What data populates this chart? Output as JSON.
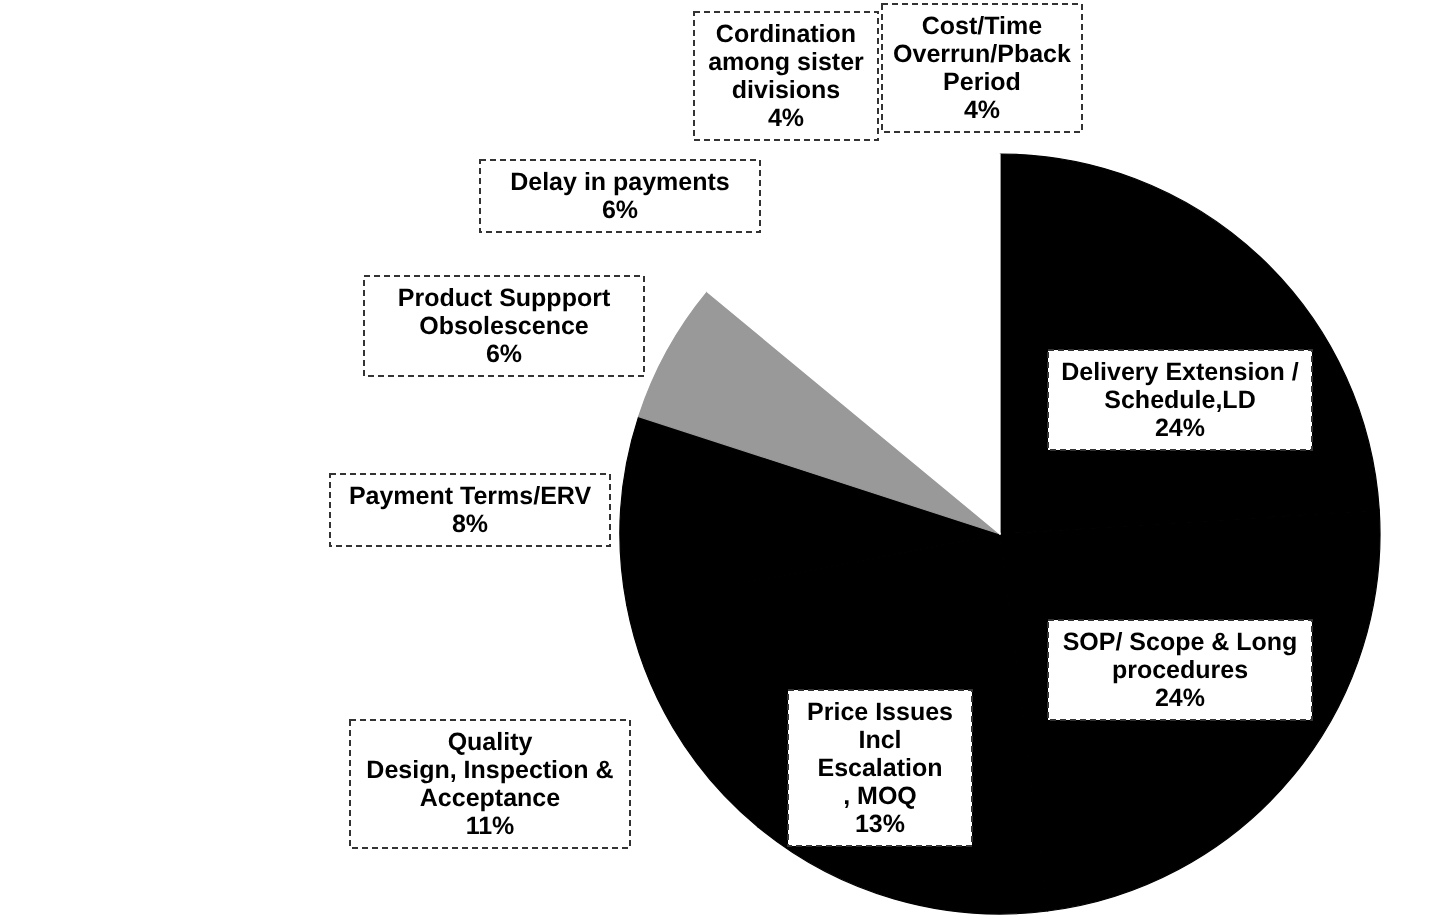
{
  "chart_data": {
    "type": "pie",
    "categories": [
      "Delivery Extension / Schedule,LD",
      "SOP/ Scope & Long procedures",
      "Price Issues Incl Escalation , MOQ",
      "Quality Design, Inspection & Acceptance",
      "Payment Terms/ERV",
      "Product Suppport Obsolescence",
      "Delay in payments",
      "Cordination among sister divisions",
      "Cost/Time Overrun/Pback Period"
    ],
    "values": [
      24,
      24,
      13,
      11,
      8,
      6,
      6,
      4,
      4
    ],
    "colors": [
      "#000000",
      "#000000",
      "#000000",
      "#000000",
      "#000000",
      "#999999",
      "#ffffff",
      "#ffffff",
      "#ffffff"
    ],
    "value_labels": [
      "24%",
      "24%",
      "13%",
      "11%",
      "8%",
      "6%",
      "6%",
      "4%",
      "4%"
    ]
  }
}
